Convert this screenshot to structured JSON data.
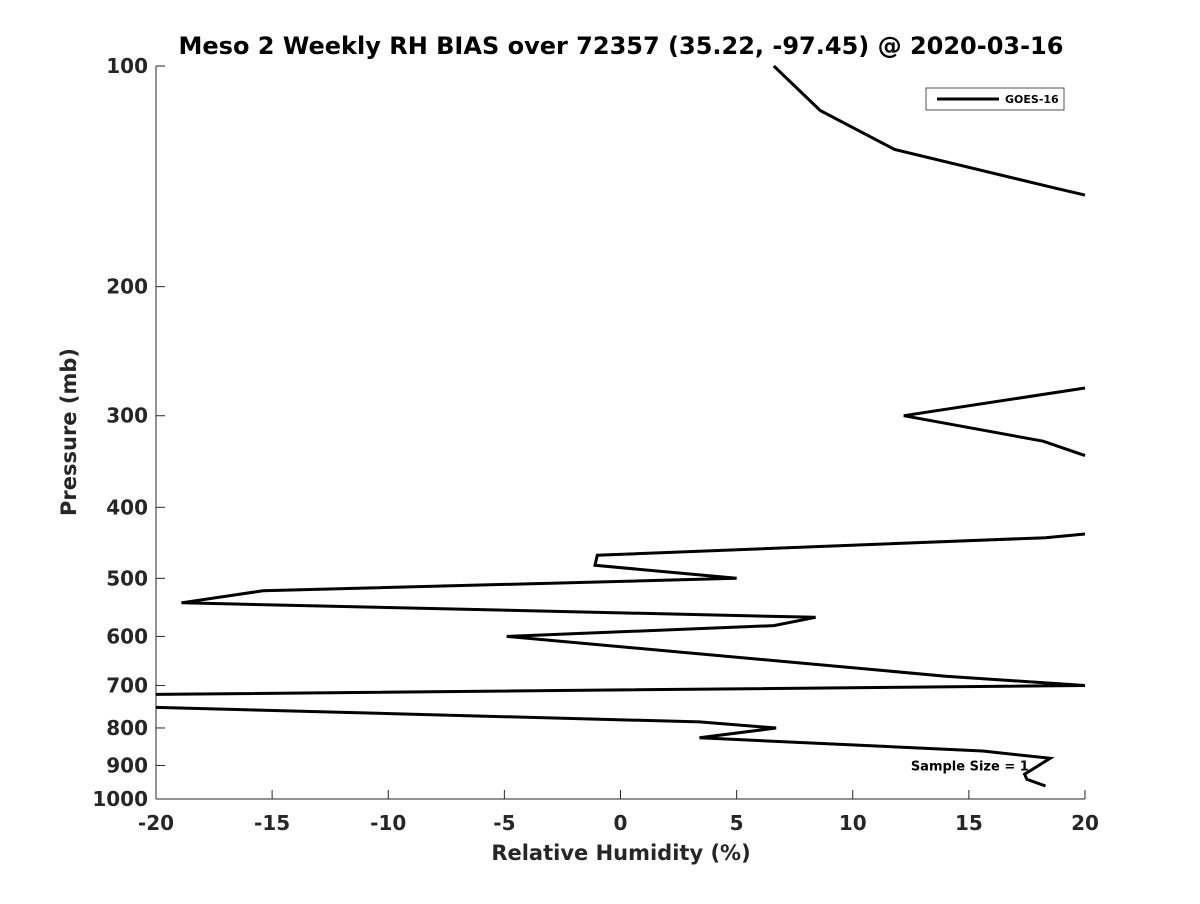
{
  "chart_data": {
    "type": "line",
    "title": "Meso 2 Weekly RH BIAS over 72357 (35.22, -97.45) @ 2020-03-16",
    "xlabel": "Relative Humidity (%)",
    "ylabel": "Pressure (mb)",
    "xlim": [
      -20,
      20
    ],
    "ylim": [
      1000,
      100
    ],
    "y_scale": "log",
    "y_reversed": true,
    "grid": false,
    "legend_position": "top-right",
    "x_ticks": [
      -20,
      -15,
      -10,
      -5,
      0,
      5,
      10,
      15,
      20
    ],
    "x_tick_labels": [
      "-20",
      "-15",
      "-10",
      "-5",
      "0",
      "5",
      "10",
      "15",
      "20"
    ],
    "y_ticks": [
      100,
      200,
      300,
      400,
      500,
      600,
      700,
      800,
      900,
      1000
    ],
    "y_tick_labels": [
      "100",
      "200",
      "300",
      "400",
      "500",
      "600",
      "700",
      "800",
      "900",
      "1000"
    ],
    "line_color": "#000000",
    "series": [
      {
        "name": "GOES-16",
        "points": [
          {
            "x": 6.6,
            "y": 100
          },
          {
            "x": 8.6,
            "y": 115
          },
          {
            "x": 11.8,
            "y": 130
          },
          {
            "x": 18.8,
            "y": 147
          },
          {
            "x": 20,
            "y": 150
          },
          {
            "x": null,
            "y": null
          },
          {
            "x": 20,
            "y": 275
          },
          {
            "x": 12.2,
            "y": 300
          },
          {
            "x": 18.2,
            "y": 325
          },
          {
            "x": 20,
            "y": 340
          },
          {
            "x": null,
            "y": null
          },
          {
            "x": 20,
            "y": 435
          },
          {
            "x": 18.3,
            "y": 440
          },
          {
            "x": -1.0,
            "y": 465
          },
          {
            "x": -1.1,
            "y": 480
          },
          {
            "x": 5.0,
            "y": 500
          },
          {
            "x": -15.4,
            "y": 520
          },
          {
            "x": -18.9,
            "y": 540
          },
          {
            "x": 8.4,
            "y": 565
          },
          {
            "x": 6.6,
            "y": 580
          },
          {
            "x": -4.9,
            "y": 600
          },
          {
            "x": 14.0,
            "y": 680
          },
          {
            "x": 20,
            "y": 700
          },
          {
            "x": -20,
            "y": 720
          },
          {
            "x": null,
            "y": null
          },
          {
            "x": -20,
            "y": 750
          },
          {
            "x": 3.4,
            "y": 785
          },
          {
            "x": 6.7,
            "y": 800
          },
          {
            "x": 3.4,
            "y": 825
          },
          {
            "x": 15.6,
            "y": 860
          },
          {
            "x": 18.5,
            "y": 880
          },
          {
            "x": 17.4,
            "y": 925
          },
          {
            "x": 17.5,
            "y": 940
          },
          {
            "x": 18.3,
            "y": 960
          }
        ]
      }
    ],
    "annotations": [
      {
        "text": "Sample Size = 1",
        "x": 12.5,
        "y": 900
      }
    ]
  }
}
